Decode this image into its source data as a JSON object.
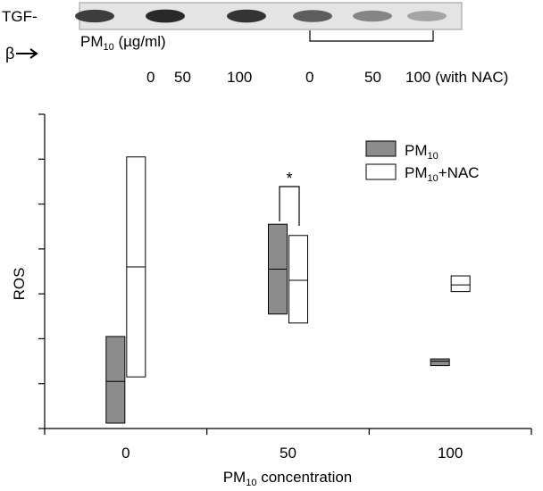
{
  "blot": {
    "label_line1": "TGF-",
    "label_line2": "β",
    "units_main": "PM",
    "units_sub": "10",
    "units_tail": " (µg/ml)",
    "lane_labels": [
      "0",
      "50",
      "100",
      "0",
      "50",
      "100 (with NAC)"
    ],
    "band_intensity": [
      0.85,
      0.95,
      0.9,
      0.7,
      0.5,
      0.35
    ]
  },
  "chart_data": {
    "type": "box",
    "categories": [
      "0",
      "50",
      "100"
    ],
    "xlabel": {
      "main": "PM",
      "sub": "10",
      "tail": " concentration"
    },
    "ylabel": "ROS",
    "y_axis": {
      "ticks": 8,
      "ylim": [
        0,
        7
      ]
    },
    "series": [
      {
        "name": {
          "main": "PM",
          "sub": "10",
          "tail": ""
        },
        "color": "#8c8c8c",
        "boxes": [
          {
            "low": 0.12,
            "median": 1.05,
            "high": 2.05
          },
          {
            "low": 2.55,
            "median": 3.55,
            "high": 4.55
          },
          {
            "low": 1.4,
            "median": 1.5,
            "high": 1.55
          }
        ]
      },
      {
        "name": {
          "main": "PM",
          "sub": "10",
          "tail": "+NAC"
        },
        "color": "#ffffff",
        "boxes": [
          {
            "low": 1.15,
            "median": 3.6,
            "high": 6.05
          },
          {
            "low": 2.35,
            "median": 3.3,
            "high": 4.3
          },
          {
            "low": 3.05,
            "median": 3.2,
            "high": 3.4
          }
        ]
      }
    ],
    "significance": {
      "label": "*",
      "between_category": "50"
    },
    "legend_position": "top-right"
  }
}
